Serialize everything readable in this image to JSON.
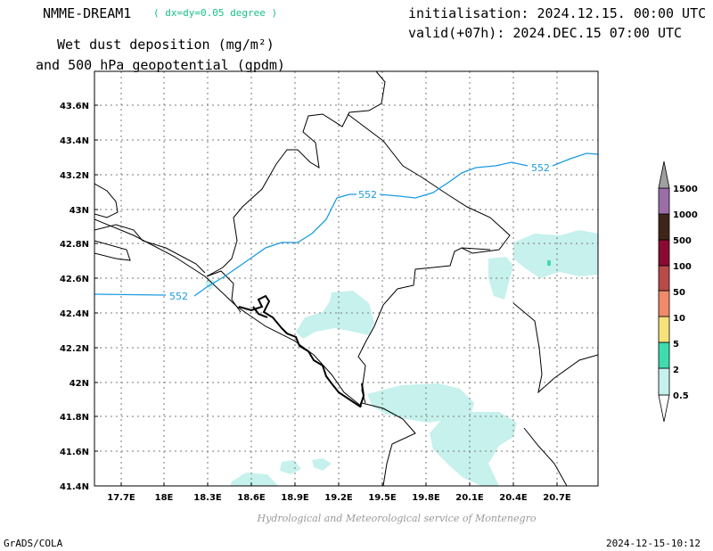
{
  "header": {
    "model": "NMME-DREAM1",
    "resolution": "( dx=dy=0.05 degree )",
    "initialisation": "initialisation: 2024.12.15. 00:00 UTC",
    "valid": "valid(+07h): 2024.DEC.15 07:00 UTC",
    "title_line1": "Wet dust deposition (mg/m²)",
    "title_line2": "and 500 hPa geopotential (gpdm)"
  },
  "footer": {
    "credit": "Hydrological and Meteorological service of Montenegro",
    "software": "GrADS/COLA",
    "timestamp": "2024-12-15-10:12"
  },
  "map": {
    "lon_ticks": [
      "17.7E",
      "18E",
      "18.3E",
      "18.6E",
      "18.9E",
      "19.2E",
      "19.5E",
      "19.8E",
      "20.1E",
      "20.4E",
      "20.7E"
    ],
    "lat_ticks": [
      "43.6N",
      "43.4N",
      "43.2N",
      "43N",
      "42.8N",
      "42.6N",
      "42.4N",
      "42.2N",
      "42N",
      "41.8N",
      "41.6N",
      "41.4N"
    ],
    "contour_labels": [
      "552",
      "552",
      "552"
    ],
    "contour_color": "#1a9be0",
    "deposition_fill_color": "#c6f1ec"
  },
  "colorbar": {
    "levels": [
      "0.5",
      "2",
      "5",
      "10",
      "50",
      "100",
      "500",
      "1000",
      "1500"
    ],
    "colors": [
      "#ffffff",
      "#c6f1ec",
      "#3fdcae",
      "#f7e27a",
      "#f08a6a",
      "#b94a48",
      "#8b0a33",
      "#40241a",
      "#9b6ea8",
      "#a0a0a0"
    ]
  }
}
